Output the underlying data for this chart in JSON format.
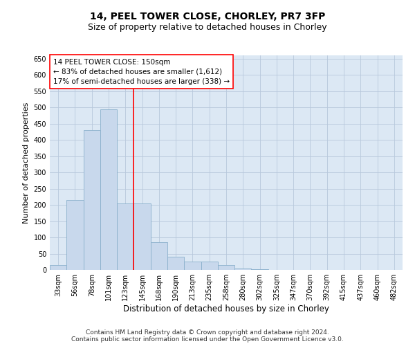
{
  "title": "14, PEEL TOWER CLOSE, CHORLEY, PR7 3FP",
  "subtitle": "Size of property relative to detached houses in Chorley",
  "xlabel": "Distribution of detached houses by size in Chorley",
  "ylabel": "Number of detached properties",
  "footer_line1": "Contains HM Land Registry data © Crown copyright and database right 2024.",
  "footer_line2": "Contains public sector information licensed under the Open Government Licence v3.0.",
  "categories": [
    "33sqm",
    "56sqm",
    "78sqm",
    "101sqm",
    "123sqm",
    "145sqm",
    "168sqm",
    "190sqm",
    "213sqm",
    "235sqm",
    "258sqm",
    "280sqm",
    "302sqm",
    "325sqm",
    "347sqm",
    "370sqm",
    "392sqm",
    "415sqm",
    "437sqm",
    "460sqm",
    "482sqm"
  ],
  "values": [
    15,
    215,
    430,
    495,
    205,
    205,
    85,
    40,
    25,
    25,
    15,
    5,
    2,
    1,
    0,
    0,
    1,
    0,
    0,
    0,
    1
  ],
  "bar_color": "#c8d8ec",
  "bar_edgecolor": "#8ab0cc",
  "bar_linewidth": 0.6,
  "grid_color": "#b8c8dc",
  "background_color": "#dce8f4",
  "vline_x_index": 4.5,
  "vline_color": "red",
  "annotation_text": "14 PEEL TOWER CLOSE: 150sqm\n← 83% of detached houses are smaller (1,612)\n17% of semi-detached houses are larger (338) →",
  "annotation_box_color": "white",
  "annotation_box_edgecolor": "red",
  "ylim": [
    0,
    660
  ],
  "yticks": [
    0,
    50,
    100,
    150,
    200,
    250,
    300,
    350,
    400,
    450,
    500,
    550,
    600,
    650
  ],
  "title_fontsize": 10,
  "subtitle_fontsize": 9,
  "xlabel_fontsize": 8.5,
  "ylabel_fontsize": 8,
  "tick_fontsize": 7,
  "footer_fontsize": 6.5,
  "annot_fontsize": 7.5
}
